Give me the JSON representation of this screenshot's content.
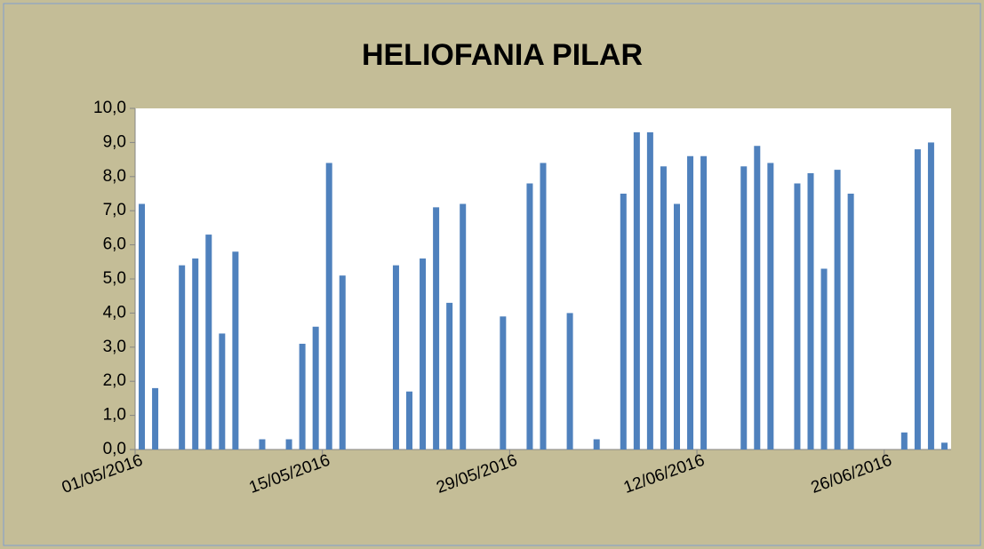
{
  "chart_data": {
    "type": "bar",
    "title": "HELIOFANIA PILAR",
    "categories": [
      "01/05/2016",
      null,
      null,
      null,
      null,
      null,
      null,
      null,
      null,
      null,
      null,
      null,
      null,
      null,
      "15/05/2016",
      null,
      null,
      null,
      null,
      null,
      null,
      null,
      null,
      null,
      null,
      null,
      null,
      null,
      "29/05/2016",
      null,
      null,
      null,
      null,
      null,
      null,
      null,
      null,
      null,
      null,
      null,
      null,
      null,
      "12/06/2016",
      null,
      null,
      null,
      null,
      null,
      null,
      null,
      null,
      null,
      null,
      null,
      null,
      null,
      "26/06/2016",
      null,
      null,
      null,
      null
    ],
    "values": [
      7.2,
      1.8,
      null,
      5.4,
      5.6,
      6.3,
      3.4,
      5.8,
      null,
      0.3,
      null,
      0.3,
      3.1,
      3.6,
      8.4,
      5.1,
      null,
      null,
      null,
      5.4,
      1.7,
      5.6,
      7.1,
      4.3,
      7.2,
      null,
      null,
      3.9,
      null,
      7.8,
      8.4,
      null,
      4.0,
      null,
      0.3,
      null,
      7.5,
      9.3,
      9.3,
      8.3,
      7.2,
      8.6,
      8.6,
      null,
      null,
      8.3,
      8.9,
      8.4,
      null,
      7.8,
      8.1,
      5.3,
      8.2,
      7.5,
      null,
      null,
      null,
      0.5,
      8.8,
      9.0,
      0.2
    ],
    "color": "#4f81bd",
    "ylim": [
      0,
      10
    ],
    "yticks": [
      {
        "value": 0,
        "label": "0,0"
      },
      {
        "value": 1,
        "label": "1,0"
      },
      {
        "value": 2,
        "label": "2,0"
      },
      {
        "value": 3,
        "label": "3,0"
      },
      {
        "value": 4,
        "label": "4,0"
      },
      {
        "value": 5,
        "label": "5,0"
      },
      {
        "value": 6,
        "label": "6,0"
      },
      {
        "value": 7,
        "label": "7,0"
      },
      {
        "value": 8,
        "label": "8,0"
      },
      {
        "value": 9,
        "label": "9,0"
      },
      {
        "value": 10,
        "label": "10,0"
      }
    ],
    "grid": false
  }
}
